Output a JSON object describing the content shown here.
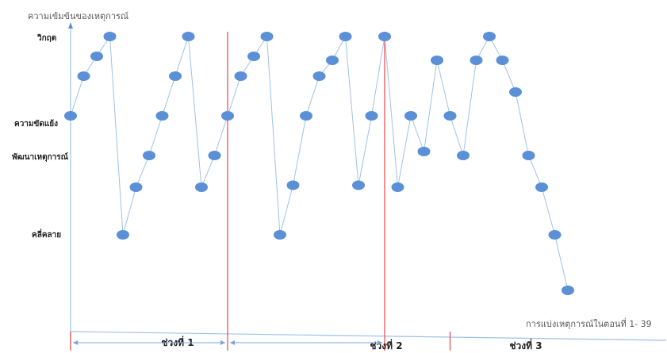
{
  "chart_data": {
    "type": "line",
    "y_axis_title": "ความเข้มข้นของเหตุการณ์",
    "x_axis_title": "การแบ่งเหตุการณ์ในตอนที่ 1- 39",
    "y_levels": [
      {
        "label": "วิกฤต",
        "value": 5
      },
      {
        "label": "ความขัดแย้ง",
        "value": 3
      },
      {
        "label": "พัฒนาเหตุการณ์",
        "value": 2.1
      },
      {
        "label": "คลี่คลาย",
        "value": 0
      }
    ],
    "ylim": [
      -1.5,
      5.2
    ],
    "xlim": [
      1,
      39
    ],
    "grid": false,
    "legend": "none",
    "series": [
      {
        "values": [
          3,
          4,
          4.5,
          5,
          0,
          1.2,
          2,
          3,
          4,
          5,
          1.2,
          2,
          3,
          4,
          4.5,
          5,
          0,
          1.25,
          3,
          4,
          4.4,
          5,
          1.25,
          3,
          5,
          1.2,
          3,
          2.1,
          4.4,
          3,
          2,
          4.4,
          5,
          4.4,
          3.6,
          2,
          1.2,
          0,
          -1.4
        ],
        "color": "#5b8fd6",
        "line_color": "#9dc3e6"
      }
    ],
    "segments": [
      {
        "label": "ช่วงที่ 1",
        "start": 1,
        "end": 13
      },
      {
        "label": "ช่วงที่ 2",
        "start": 13,
        "end": 25
      },
      {
        "label": "ช่วงที่ 3",
        "start": 25,
        "end": 30
      }
    ],
    "divider_color": "#e8464a"
  }
}
